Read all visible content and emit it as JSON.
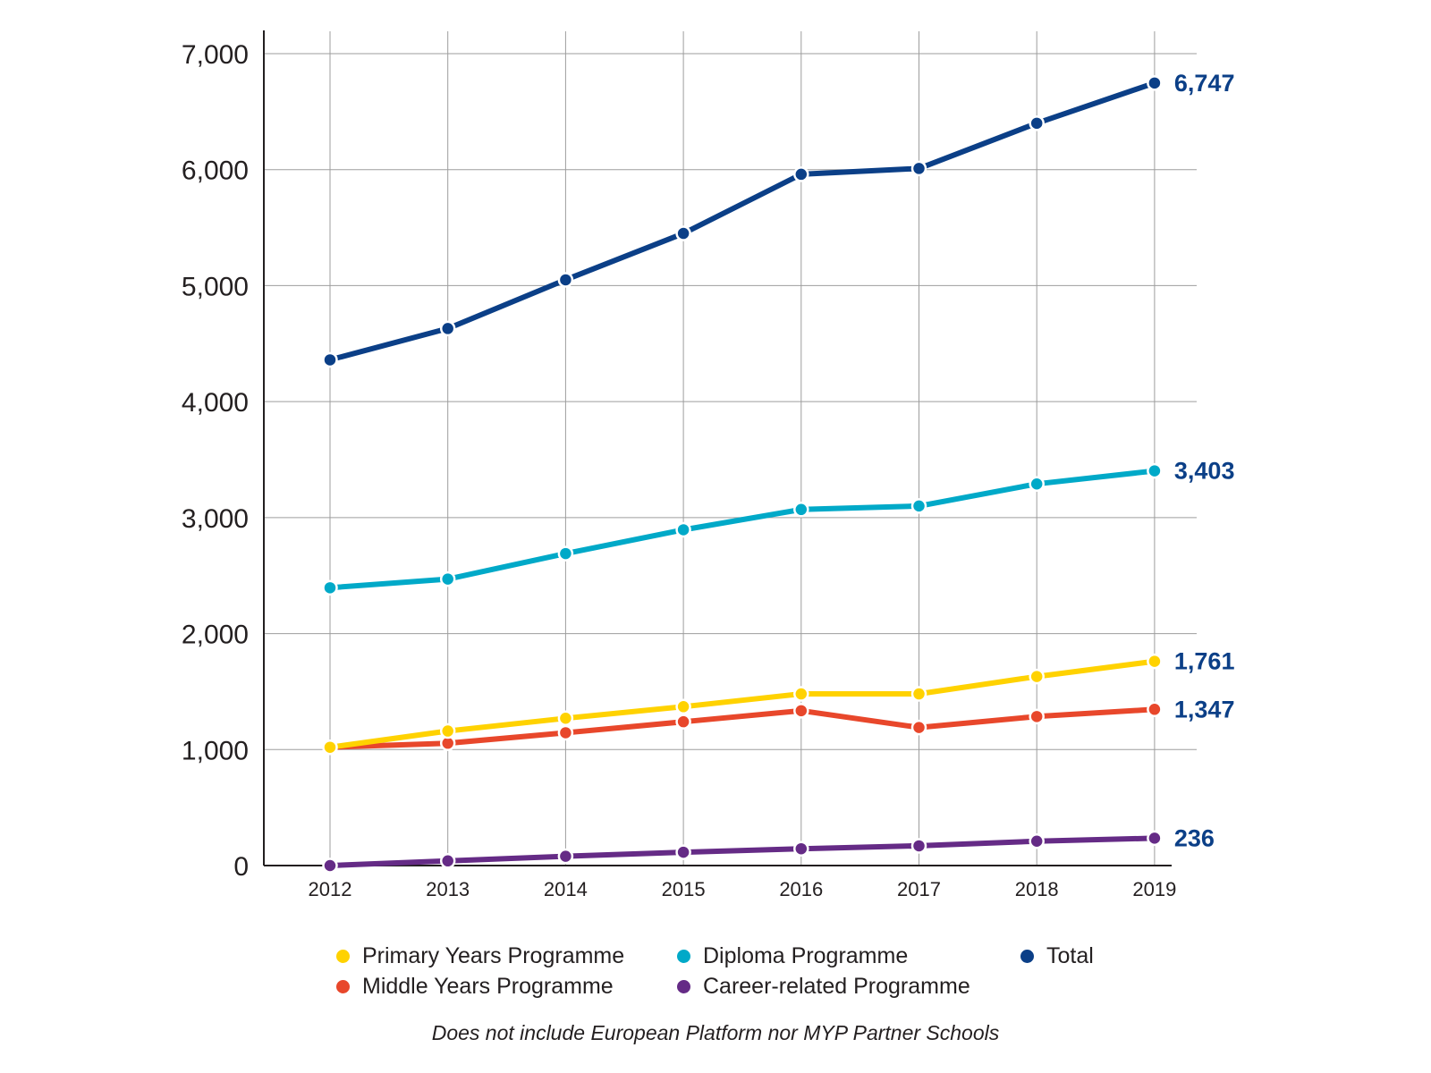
{
  "chart_data": {
    "type": "line",
    "title": "",
    "xlabel": "",
    "ylabel": "",
    "x": [
      "2012",
      "2013",
      "2014",
      "2015",
      "2016",
      "2017",
      "2018",
      "2019"
    ],
    "ylim": [
      0,
      7000
    ],
    "yticks": [
      0,
      1000,
      2000,
      3000,
      4000,
      5000,
      6000,
      7000
    ],
    "ytick_labels": [
      "0",
      "1,000",
      "2,000",
      "3,000",
      "4,000",
      "5,000",
      "6,000",
      "7,000"
    ],
    "grid": true,
    "legend_position": "bottom",
    "series": [
      {
        "name": "Total",
        "color": "#0b3f87",
        "values": [
          4360,
          4630,
          5050,
          5450,
          5960,
          6010,
          6400,
          6747
        ],
        "end_label": "6,747"
      },
      {
        "name": "Diploma Programme",
        "color": "#00a9c8",
        "values": [
          2395,
          2470,
          2690,
          2895,
          3070,
          3100,
          3290,
          3403
        ],
        "end_label": "3,403"
      },
      {
        "name": "Primary Years Programme",
        "color": "#ffd200",
        "values": [
          1020,
          1160,
          1270,
          1370,
          1480,
          1480,
          1630,
          1761
        ],
        "end_label": "1,761"
      },
      {
        "name": "Middle Years Programme",
        "color": "#e8472b",
        "values": [
          1020,
          1055,
          1145,
          1240,
          1335,
          1190,
          1285,
          1347
        ],
        "end_label": "1,347"
      },
      {
        "name": "Career-related Programme",
        "color": "#652b86",
        "values": [
          0,
          40,
          80,
          115,
          145,
          170,
          210,
          236
        ],
        "end_label": "236"
      }
    ],
    "end_label_color": "#0b3f87",
    "footnote": "Does not include European Platform nor MYP Partner Schools"
  },
  "legend": [
    {
      "label": "Primary Years Programme",
      "color": "#ffd200"
    },
    {
      "label": "Middle Years Programme",
      "color": "#e8472b"
    },
    {
      "label": "Diploma Programme",
      "color": "#00a9c8"
    },
    {
      "label": "Career-related Programme",
      "color": "#652b86"
    },
    {
      "label": "Total",
      "color": "#0b3f87"
    }
  ]
}
